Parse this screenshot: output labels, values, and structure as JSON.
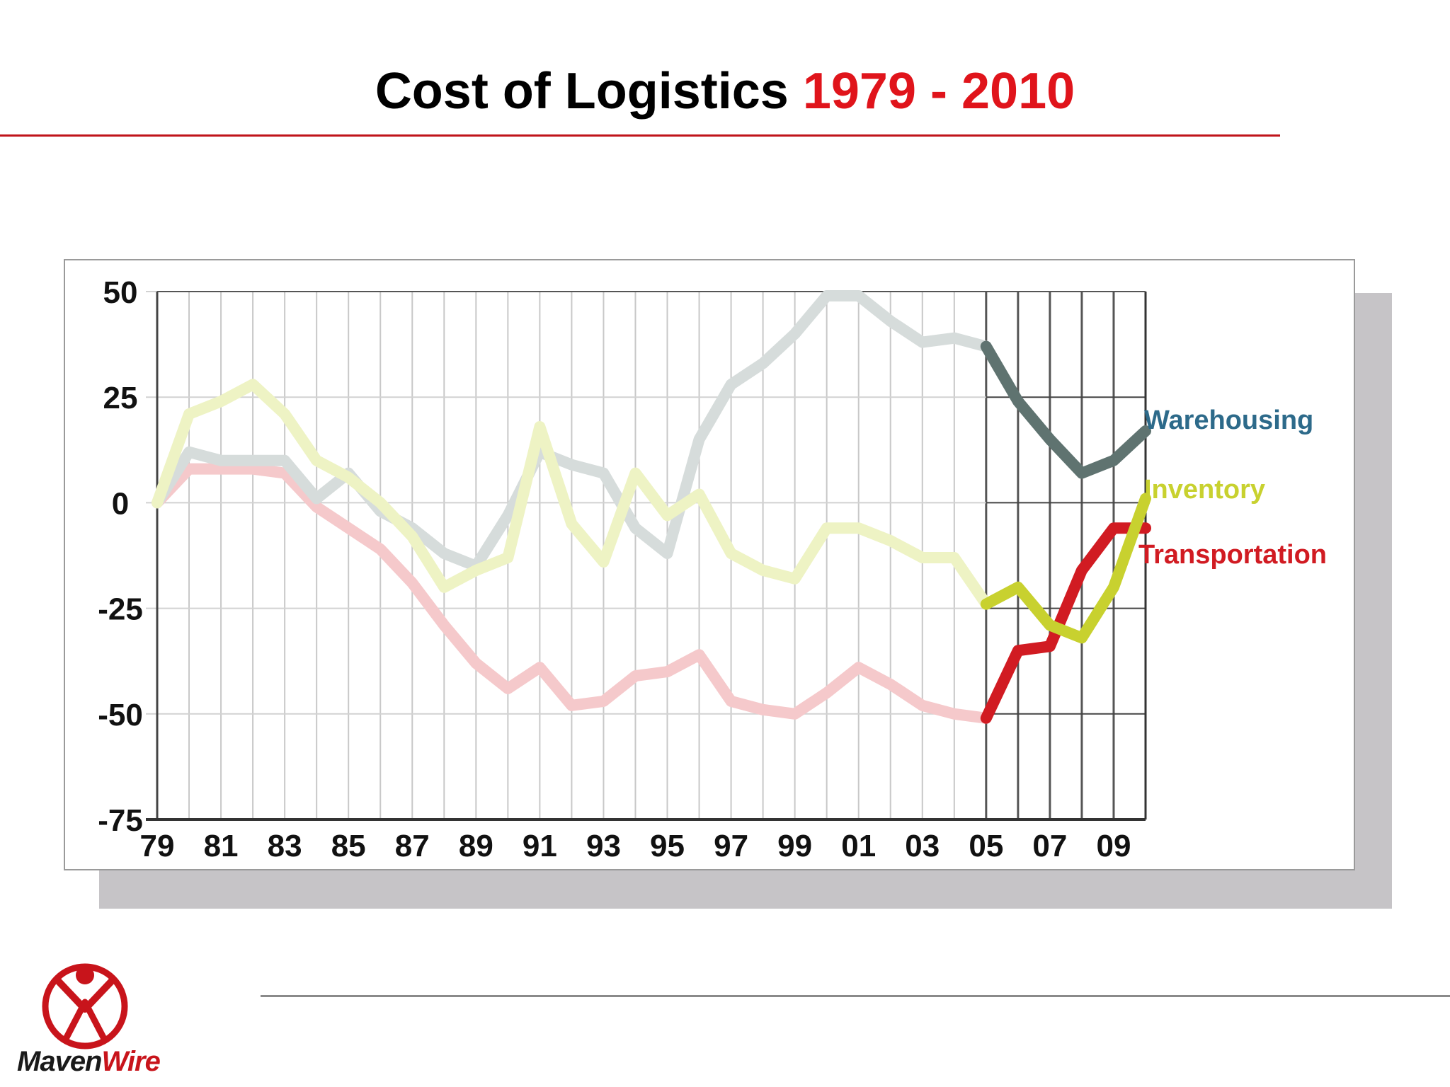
{
  "slide": {
    "title_main": "Cost of Logistics",
    "title_accent": "1979 - 2010",
    "logo": {
      "name_part1": "Maven",
      "name_part2": "Wire",
      "accent_color": "#c8141b"
    }
  },
  "chart_data": {
    "type": "line",
    "title": "",
    "xlabel": "",
    "ylabel": "",
    "x": [
      1979,
      1980,
      1981,
      1982,
      1983,
      1984,
      1985,
      1986,
      1987,
      1988,
      1989,
      1990,
      1991,
      1992,
      1993,
      1994,
      1995,
      1996,
      1997,
      1998,
      1999,
      2000,
      2001,
      2002,
      2003,
      2004,
      2005,
      2006,
      2007,
      2008,
      2009,
      2010
    ],
    "x_tick_labels": [
      "79",
      "81",
      "83",
      "85",
      "87",
      "89",
      "91",
      "93",
      "95",
      "97",
      "99",
      "01",
      "03",
      "05",
      "07",
      "09"
    ],
    "y_ticks": [
      50,
      25,
      0,
      -25,
      -50,
      -75
    ],
    "y_tick_labels": [
      "50",
      "25",
      "0",
      "-25",
      "-50",
      "-75"
    ],
    "ylim": [
      -75,
      50
    ],
    "xlim": [
      1979,
      2010
    ],
    "grid": true,
    "highlight_from": 2005,
    "series": [
      {
        "name": "Warehousing",
        "color": "#5f7370",
        "faded_color": "#d6dcdb",
        "values": [
          0,
          12,
          10,
          10,
          10,
          1,
          7,
          -2,
          -6,
          -12,
          -15,
          -3,
          12,
          9,
          7,
          -6,
          -12,
          15,
          28,
          33,
          40,
          49,
          49,
          43,
          38,
          39,
          37,
          24,
          15,
          7,
          10,
          17
        ]
      },
      {
        "name": "Inventory",
        "color": "#c8d12f",
        "faded_color": "#eef3c4",
        "values": [
          0,
          21,
          24,
          28,
          21,
          10,
          6,
          0,
          -8,
          -20,
          -16,
          -13,
          18,
          -5,
          -14,
          7,
          -3,
          2,
          -12,
          -16,
          -18,
          -6,
          -6,
          -9,
          -13,
          -13,
          -24,
          -20,
          -29,
          -32,
          -20,
          1
        ]
      },
      {
        "name": "Transportation",
        "color": "#d11b22",
        "faded_color": "#f5c9cb",
        "values": [
          0,
          8,
          8,
          8,
          7,
          -1,
          -6,
          -11,
          -19,
          -29,
          -38,
          -44,
          -39,
          -48,
          -47,
          -41,
          -40,
          -36,
          -47,
          -49,
          -50,
          -45,
          -39,
          -43,
          -48,
          -50,
          -51,
          -35,
          -34,
          -16,
          -6,
          -6
        ]
      }
    ],
    "legend_placement": "right, at line ends"
  }
}
